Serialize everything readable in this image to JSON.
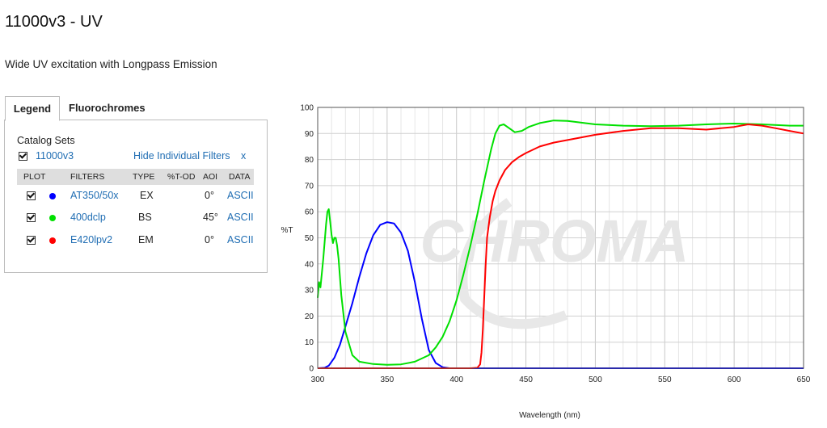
{
  "page": {
    "title": "11000v3 - UV",
    "subtitle": "Wide UV excitation with Longpass Emission"
  },
  "tabs": [
    {
      "label": "Legend",
      "active": true
    },
    {
      "label": "Fluorochromes",
      "active": false
    }
  ],
  "legend": {
    "catalog_label": "Catalog Sets",
    "set_name": "11000v3",
    "set_checked": true,
    "hide_link": "Hide Individual Filters",
    "close_link": "x",
    "columns": [
      "PLOT",
      "FILTERS",
      "TYPE",
      "%T-OD",
      "AOI",
      "DATA"
    ],
    "filters": [
      {
        "checked": true,
        "color": "#0000ff",
        "name": "AT350/50x",
        "type": "EX",
        "aoi": "0°",
        "data": "ASCII"
      },
      {
        "checked": true,
        "color": "#00e000",
        "name": "400dclp",
        "type": "BS",
        "aoi": "45°",
        "data": "ASCII"
      },
      {
        "checked": true,
        "color": "#ff0000",
        "name": "E420lpv2",
        "type": "EM",
        "aoi": "0°",
        "data": "ASCII"
      }
    ]
  },
  "watermark": "CHROMA",
  "chart_data": {
    "type": "line",
    "title": "",
    "xlabel": "Wavelength (nm)",
    "ylabel": "%T",
    "xlim": [
      300,
      650
    ],
    "ylim": [
      0,
      100
    ],
    "xticks": [
      300,
      350,
      400,
      450,
      500,
      550,
      600,
      650
    ],
    "yticks": [
      0,
      10,
      20,
      30,
      40,
      50,
      60,
      70,
      80,
      90,
      100
    ],
    "grid": true,
    "series": [
      {
        "name": "AT350/50x",
        "color": "#0000ff",
        "x": [
          300,
          305,
          308,
          312,
          316,
          320,
          325,
          330,
          335,
          340,
          345,
          350,
          355,
          360,
          365,
          370,
          375,
          380,
          385,
          390,
          395,
          400,
          650
        ],
        "y": [
          0,
          0.2,
          1,
          4,
          9,
          16,
          25,
          35,
          44,
          51,
          55,
          56,
          55.5,
          52,
          45,
          33,
          19,
          7,
          2,
          0.4,
          0,
          0,
          0
        ]
      },
      {
        "name": "400dclp",
        "color": "#00e000",
        "x": [
          300,
          301,
          302,
          304,
          306,
          307,
          308,
          309,
          310,
          311,
          312,
          313,
          314,
          315,
          317,
          320,
          325,
          330,
          340,
          350,
          360,
          370,
          380,
          385,
          390,
          395,
          400,
          405,
          410,
          415,
          420,
          425,
          428,
          431,
          434,
          438,
          442,
          447,
          452,
          460,
          470,
          480,
          500,
          520,
          540,
          560,
          580,
          600,
          620,
          640,
          650
        ],
        "y": [
          27,
          33,
          31,
          42,
          55,
          60,
          61,
          56,
          51,
          48,
          50,
          50,
          47,
          42,
          28,
          14,
          5,
          2.5,
          1.6,
          1.3,
          1.5,
          2.5,
          5,
          8,
          12,
          18,
          26,
          36,
          47,
          59,
          72,
          84,
          90,
          93,
          93.5,
          92,
          90.5,
          91,
          92.5,
          94,
          95,
          94.8,
          93.5,
          93,
          92.8,
          93,
          93.5,
          93.8,
          93.5,
          93,
          93
        ]
      },
      {
        "name": "E420lpv2",
        "color": "#ff0000",
        "x": [
          300,
          410,
          415,
          417,
          418,
          419,
          420,
          421,
          422,
          424,
          426,
          428,
          431,
          435,
          440,
          445,
          450,
          460,
          470,
          480,
          490,
          500,
          520,
          540,
          560,
          580,
          600,
          610,
          620,
          630,
          640,
          650
        ],
        "y": [
          0,
          0,
          0.2,
          1.5,
          6,
          15,
          28,
          40,
          50,
          58,
          64,
          68,
          72,
          76,
          79,
          81,
          82.5,
          85,
          86.5,
          87.5,
          88.5,
          89.5,
          91,
          92,
          92,
          91.5,
          92.5,
          93.5,
          93,
          92,
          91,
          90
        ]
      }
    ]
  }
}
